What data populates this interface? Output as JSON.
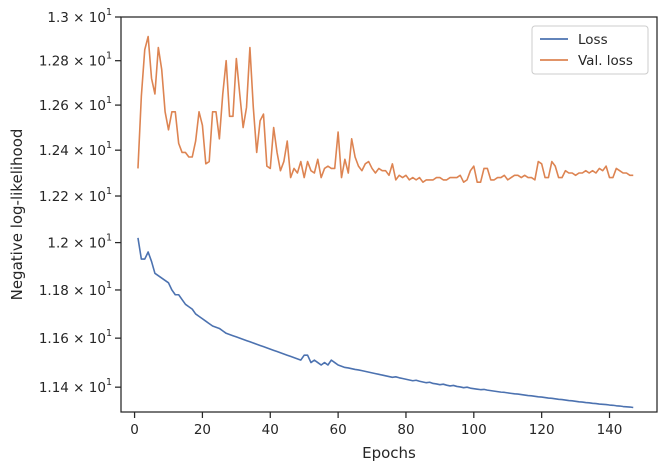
{
  "chart_data": {
    "type": "line",
    "title": "",
    "xlabel": "Epochs",
    "ylabel": "Negative log-likelihood",
    "xlim": [
      -4,
      154
    ],
    "ylim": [
      11.3,
      13.0
    ],
    "yscale": "log",
    "grid": false,
    "legend_position": "top-right",
    "x_ticks": [
      0,
      20,
      40,
      60,
      80,
      100,
      120,
      140
    ],
    "x_tick_labels": [
      "0",
      "20",
      "40",
      "60",
      "80",
      "100",
      "120",
      "140"
    ],
    "y_ticks": [
      11.4,
      11.6,
      11.8,
      12.0,
      12.2,
      12.4,
      12.6,
      12.8,
      13.0
    ],
    "y_tick_mantissas": [
      "1.14",
      "1.16",
      "1.18",
      "1.2",
      "1.22",
      "1.24",
      "1.26",
      "1.28",
      "1.3"
    ],
    "y_tick_base": "× 10",
    "y_tick_exponent": "1",
    "series": [
      {
        "name": "Loss",
        "color": "#4c72b0",
        "x": [
          1,
          2,
          3,
          4,
          5,
          6,
          7,
          8,
          9,
          10,
          11,
          12,
          13,
          14,
          15,
          16,
          17,
          18,
          19,
          20,
          21,
          22,
          23,
          24,
          25,
          26,
          27,
          28,
          29,
          30,
          31,
          32,
          33,
          34,
          35,
          36,
          37,
          38,
          39,
          40,
          41,
          42,
          43,
          44,
          45,
          46,
          47,
          48,
          49,
          50,
          51,
          52,
          53,
          54,
          55,
          56,
          57,
          58,
          59,
          60,
          61,
          62,
          63,
          64,
          65,
          66,
          67,
          68,
          69,
          70,
          71,
          72,
          73,
          74,
          75,
          76,
          77,
          78,
          79,
          80,
          81,
          82,
          83,
          84,
          85,
          86,
          87,
          88,
          89,
          90,
          91,
          92,
          93,
          94,
          95,
          96,
          97,
          98,
          99,
          100,
          101,
          102,
          103,
          104,
          105,
          106,
          107,
          108,
          109,
          110,
          111,
          112,
          113,
          114,
          115,
          116,
          117,
          118,
          119,
          120,
          121,
          122,
          123,
          124,
          125,
          126,
          127,
          128,
          129,
          130,
          131,
          132,
          133,
          134,
          135,
          136,
          137,
          138,
          139,
          140,
          141,
          142,
          143,
          144,
          145,
          146,
          147
        ],
        "y": [
          12.02,
          11.93,
          11.93,
          11.96,
          11.92,
          11.87,
          11.86,
          11.85,
          11.84,
          11.83,
          11.8,
          11.78,
          11.78,
          11.76,
          11.74,
          11.73,
          11.72,
          11.7,
          11.69,
          11.68,
          11.67,
          11.66,
          11.65,
          11.645,
          11.64,
          11.63,
          11.62,
          11.615,
          11.61,
          11.605,
          11.6,
          11.595,
          11.59,
          11.585,
          11.58,
          11.575,
          11.57,
          11.565,
          11.56,
          11.555,
          11.55,
          11.545,
          11.54,
          11.535,
          11.53,
          11.525,
          11.52,
          11.515,
          11.51,
          11.53,
          11.53,
          11.5,
          11.51,
          11.5,
          11.49,
          11.5,
          11.49,
          11.51,
          11.5,
          11.49,
          11.485,
          11.48,
          11.478,
          11.475,
          11.472,
          11.47,
          11.467,
          11.464,
          11.461,
          11.458,
          11.455,
          11.452,
          11.449,
          11.446,
          11.443,
          11.44,
          11.442,
          11.438,
          11.435,
          11.432,
          11.429,
          11.426,
          11.428,
          11.424,
          11.421,
          11.418,
          11.42,
          11.415,
          11.413,
          11.41,
          11.412,
          11.408,
          11.405,
          11.407,
          11.403,
          11.401,
          11.398,
          11.4,
          11.396,
          11.394,
          11.392,
          11.39,
          11.391,
          11.388,
          11.386,
          11.384,
          11.382,
          11.38,
          11.379,
          11.377,
          11.375,
          11.373,
          11.372,
          11.37,
          11.368,
          11.366,
          11.365,
          11.363,
          11.361,
          11.36,
          11.358,
          11.356,
          11.355,
          11.353,
          11.351,
          11.35,
          11.348,
          11.346,
          11.345,
          11.343,
          11.341,
          11.34,
          11.338,
          11.337,
          11.335,
          11.334,
          11.332,
          11.331,
          11.33,
          11.328,
          11.327,
          11.325,
          11.324,
          11.322,
          11.321,
          11.32,
          11.318
        ]
      },
      {
        "name": "Val. loss",
        "color": "#dd8452",
        "x": [
          1,
          2,
          3,
          4,
          5,
          6,
          7,
          8,
          9,
          10,
          11,
          12,
          13,
          14,
          15,
          16,
          17,
          18,
          19,
          20,
          21,
          22,
          23,
          24,
          25,
          26,
          27,
          28,
          29,
          30,
          31,
          32,
          33,
          34,
          35,
          36,
          37,
          38,
          39,
          40,
          41,
          42,
          43,
          44,
          45,
          46,
          47,
          48,
          49,
          50,
          51,
          52,
          53,
          54,
          55,
          56,
          57,
          58,
          59,
          60,
          61,
          62,
          63,
          64,
          65,
          66,
          67,
          68,
          69,
          70,
          71,
          72,
          73,
          74,
          75,
          76,
          77,
          78,
          79,
          80,
          81,
          82,
          83,
          84,
          85,
          86,
          87,
          88,
          89,
          90,
          91,
          92,
          93,
          94,
          95,
          96,
          97,
          98,
          99,
          100,
          101,
          102,
          103,
          104,
          105,
          106,
          107,
          108,
          109,
          110,
          111,
          112,
          113,
          114,
          115,
          116,
          117,
          118,
          119,
          120,
          121,
          122,
          123,
          124,
          125,
          126,
          127,
          128,
          129,
          130,
          131,
          132,
          133,
          134,
          135,
          136,
          137,
          138,
          139,
          140,
          141,
          142,
          143,
          144,
          145,
          146,
          147
        ],
        "y": [
          12.32,
          12.64,
          12.85,
          12.91,
          12.72,
          12.65,
          12.86,
          12.76,
          12.57,
          12.49,
          12.57,
          12.57,
          12.43,
          12.39,
          12.39,
          12.37,
          12.37,
          12.44,
          12.57,
          12.51,
          12.34,
          12.35,
          12.57,
          12.57,
          12.45,
          12.65,
          12.8,
          12.55,
          12.55,
          12.81,
          12.65,
          12.5,
          12.59,
          12.86,
          12.59,
          12.39,
          12.53,
          12.56,
          12.33,
          12.32,
          12.5,
          12.39,
          12.31,
          12.35,
          12.44,
          12.28,
          12.32,
          12.3,
          12.35,
          12.28,
          12.35,
          12.31,
          12.3,
          12.36,
          12.28,
          12.32,
          12.33,
          12.32,
          12.32,
          12.48,
          12.28,
          12.36,
          12.3,
          12.45,
          12.37,
          12.33,
          12.31,
          12.34,
          12.35,
          12.32,
          12.3,
          12.32,
          12.31,
          12.31,
          12.29,
          12.34,
          12.27,
          12.29,
          12.28,
          12.29,
          12.27,
          12.28,
          12.27,
          12.28,
          12.26,
          12.27,
          12.27,
          12.27,
          12.28,
          12.28,
          12.27,
          12.27,
          12.28,
          12.28,
          12.28,
          12.29,
          12.26,
          12.27,
          12.31,
          12.33,
          12.26,
          12.26,
          12.32,
          12.32,
          12.27,
          12.27,
          12.28,
          12.28,
          12.29,
          12.27,
          12.28,
          12.29,
          12.29,
          12.28,
          12.29,
          12.28,
          12.28,
          12.27,
          12.35,
          12.34,
          12.28,
          12.28,
          12.35,
          12.33,
          12.28,
          12.28,
          12.31,
          12.3,
          12.3,
          12.29,
          12.3,
          12.3,
          12.31,
          12.3,
          12.31,
          12.3,
          12.32,
          12.31,
          12.33,
          12.28,
          12.28,
          12.32,
          12.31,
          12.3,
          12.3,
          12.29,
          12.29
        ]
      }
    ]
  }
}
